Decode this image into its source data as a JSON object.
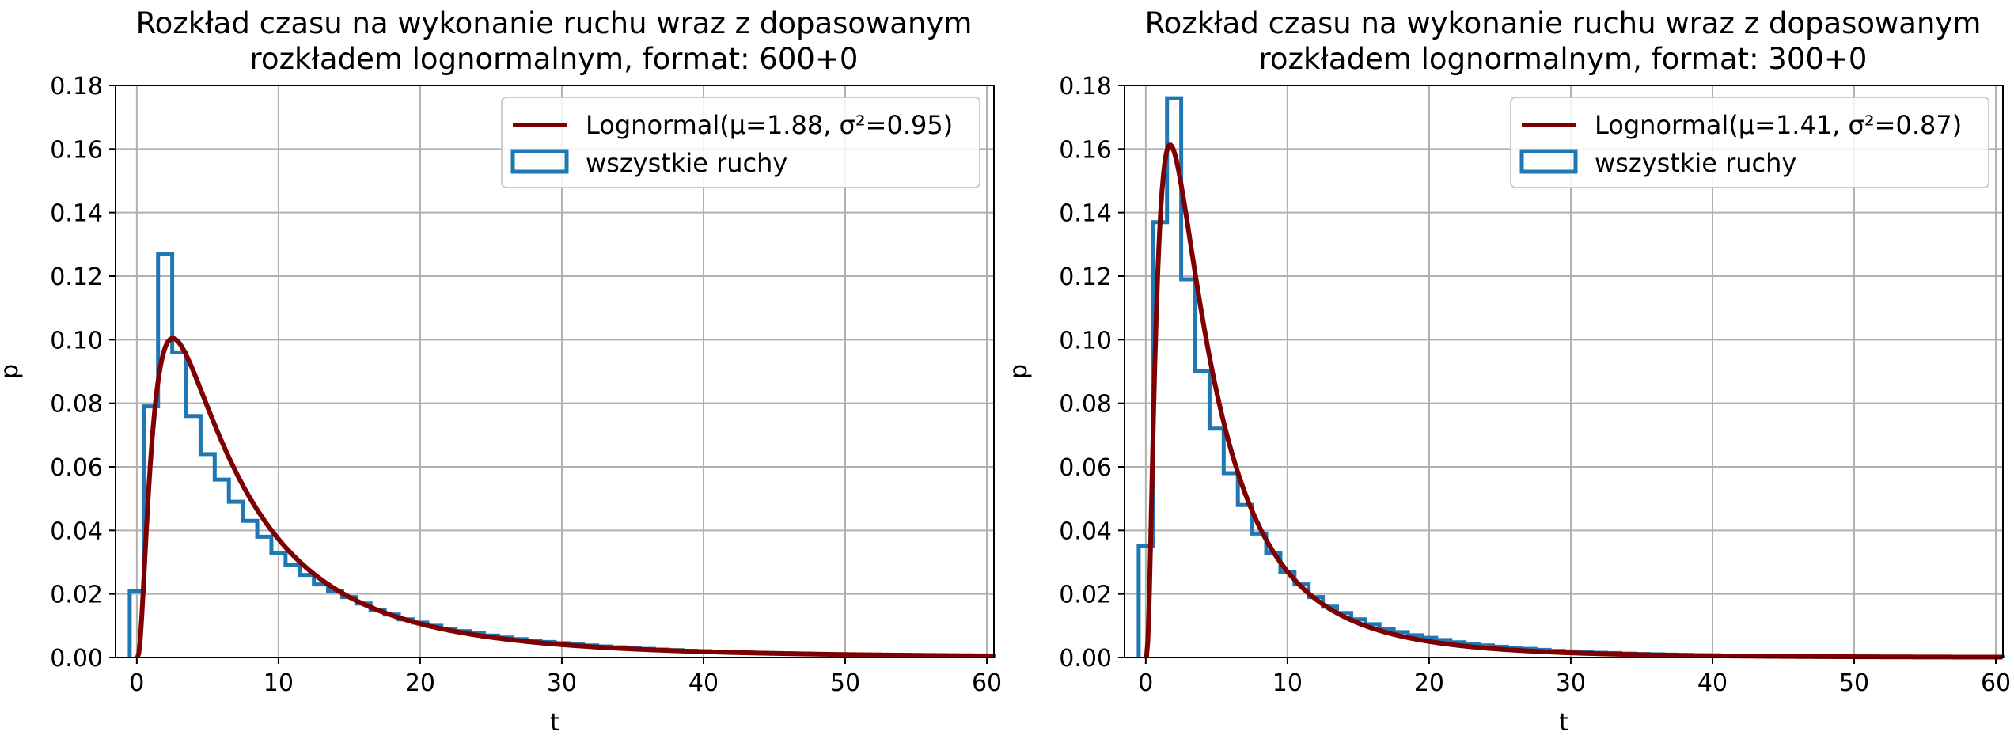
{
  "chart_data": [
    {
      "type": "line",
      "title": "Rozkład czasu na wykonanie ruchu wraz z dopasowanym\nrozkładem lognormalnym, format: 600+0",
      "xlabel": "t",
      "ylabel": "p",
      "xlim": [
        -1.5,
        60.5
      ],
      "ylim": [
        0,
        0.18
      ],
      "xticks": [
        "0",
        "10",
        "20",
        "30",
        "40",
        "50",
        "60"
      ],
      "yticks": [
        "0.00",
        "0.02",
        "0.04",
        "0.06",
        "0.08",
        "0.10",
        "0.12",
        "0.14",
        "0.16",
        "0.18"
      ],
      "grid": true,
      "legend_position": "top-right",
      "histogram": {
        "name": "wszystkie ruchy",
        "color": "#1f77b4",
        "bin_edges": [
          -0.5,
          0.5,
          1.5,
          2.5,
          3.5,
          4.5,
          5.5,
          6.5,
          7.5,
          8.5,
          9.5,
          10.5,
          11.5,
          12.5,
          13.5,
          14.5,
          15.5,
          16.5,
          17.5,
          18.5,
          19.5,
          20.5,
          21.5,
          22.5,
          23.5,
          24.5,
          25.5,
          26.5,
          27.5,
          28.5,
          29.5,
          30.5,
          31.5,
          32.5,
          33.5,
          34.5,
          35.5,
          36.5,
          37.5,
          38.5,
          39.5,
          40.5,
          41.5,
          42.5,
          43.5,
          44.5,
          45.5,
          46.5,
          47.5,
          48.5,
          49.5,
          50.5,
          51.5,
          52.5,
          53.5,
          54.5,
          55.5,
          56.5,
          57.5,
          58.5,
          59.5,
          60.5
        ],
        "values": [
          0.021,
          0.079,
          0.127,
          0.096,
          0.076,
          0.064,
          0.056,
          0.049,
          0.043,
          0.038,
          0.033,
          0.029,
          0.026,
          0.023,
          0.021,
          0.019,
          0.017,
          0.015,
          0.0135,
          0.012,
          0.011,
          0.01,
          0.0091,
          0.0083,
          0.0076,
          0.0069,
          0.0063,
          0.0058,
          0.0053,
          0.0049,
          0.0045,
          0.0041,
          0.0038,
          0.0035,
          0.0032,
          0.003,
          0.0027,
          0.0025,
          0.0023,
          0.0021,
          0.002,
          0.0018,
          0.0017,
          0.0016,
          0.0015,
          0.0014,
          0.0013,
          0.0012,
          0.0011,
          0.001,
          0.001,
          0.0009,
          0.0009,
          0.0008,
          0.0008,
          0.0007,
          0.0007,
          0.0006,
          0.0006,
          0.0006,
          0.0005
        ]
      },
      "series": [
        {
          "name": "Lognormal(μ=1.88, σ²=0.95)",
          "color": "#7f0000",
          "distribution": "lognormal",
          "mu": 1.88,
          "sigma2": 0.95
        }
      ]
    },
    {
      "type": "line",
      "title": "Rozkład czasu na wykonanie ruchu wraz z dopasowanym\nrozkładem lognormalnym, format: 300+0",
      "xlabel": "t",
      "ylabel": "p",
      "xlim": [
        -1.5,
        60.5
      ],
      "ylim": [
        0,
        0.18
      ],
      "xticks": [
        "0",
        "10",
        "20",
        "30",
        "40",
        "50",
        "60"
      ],
      "yticks": [
        "0.00",
        "0.02",
        "0.04",
        "0.06",
        "0.08",
        "0.10",
        "0.12",
        "0.14",
        "0.16",
        "0.18"
      ],
      "grid": true,
      "legend_position": "top-right",
      "histogram": {
        "name": "wszystkie ruchy",
        "color": "#1f77b4",
        "bin_edges": [
          -0.5,
          0.5,
          1.5,
          2.5,
          3.5,
          4.5,
          5.5,
          6.5,
          7.5,
          8.5,
          9.5,
          10.5,
          11.5,
          12.5,
          13.5,
          14.5,
          15.5,
          16.5,
          17.5,
          18.5,
          19.5,
          20.5,
          21.5,
          22.5,
          23.5,
          24.5,
          25.5,
          26.5,
          27.5,
          28.5,
          29.5,
          30.5,
          31.5,
          32.5,
          33.5,
          34.5,
          35.5,
          36.5,
          37.5,
          38.5,
          39.5,
          40.5,
          41.5,
          42.5,
          43.5,
          44.5,
          45.5,
          46.5,
          47.5,
          48.5,
          49.5,
          50.5,
          51.5,
          52.5,
          53.5,
          54.5,
          55.5,
          56.5,
          57.5,
          58.5,
          59.5,
          60.5
        ],
        "values": [
          0.035,
          0.137,
          0.176,
          0.119,
          0.09,
          0.072,
          0.058,
          0.048,
          0.039,
          0.033,
          0.027,
          0.023,
          0.019,
          0.016,
          0.014,
          0.012,
          0.0105,
          0.009,
          0.008,
          0.007,
          0.0062,
          0.0055,
          0.0048,
          0.0043,
          0.0038,
          0.0034,
          0.003,
          0.0027,
          0.0024,
          0.0021,
          0.0019,
          0.0017,
          0.0015,
          0.0014,
          0.0012,
          0.0011,
          0.001,
          0.0009,
          0.0008,
          0.0007,
          0.0007,
          0.0006,
          0.0006,
          0.0005,
          0.0005,
          0.0004,
          0.0004,
          0.0004,
          0.0003,
          0.0003,
          0.0003,
          0.0003,
          0.0002,
          0.0002,
          0.0002,
          0.0002,
          0.0002,
          0.0002,
          0.0001,
          0.0001,
          0.0001
        ]
      },
      "series": [
        {
          "name": "Lognormal(μ=1.41, σ²=0.87)",
          "color": "#7f0000",
          "distribution": "lognormal",
          "mu": 1.41,
          "sigma2": 0.87
        }
      ]
    }
  ]
}
